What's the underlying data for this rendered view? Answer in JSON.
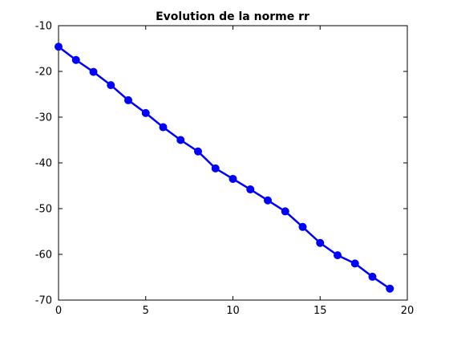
{
  "chart_data": {
    "type": "line",
    "title": "Evolution de la norme rr",
    "xlabel": "",
    "ylabel": "",
    "xlim": [
      0,
      20
    ],
    "ylim": [
      -70,
      -10
    ],
    "xticks": [
      "0",
      "5",
      "10",
      "15",
      "20"
    ],
    "yticks": [
      "-10",
      "-20",
      "-30",
      "-40",
      "-50",
      "-60",
      "-70"
    ],
    "grid": false,
    "series": [
      {
        "color": "#0000ff",
        "marker": "circle",
        "x": [
          0,
          1,
          2,
          3,
          4,
          5,
          6,
          7,
          8,
          9,
          10,
          11,
          12,
          13,
          14,
          15,
          16,
          17,
          18,
          19
        ],
        "y": [
          -14.6,
          -17.5,
          -20.1,
          -23.0,
          -26.3,
          -29.1,
          -32.2,
          -35.0,
          -37.5,
          -41.2,
          -43.5,
          -45.8,
          -48.2,
          -50.6,
          -54.0,
          -57.5,
          -60.2,
          -62.0,
          -64.9,
          -67.5
        ]
      }
    ]
  }
}
